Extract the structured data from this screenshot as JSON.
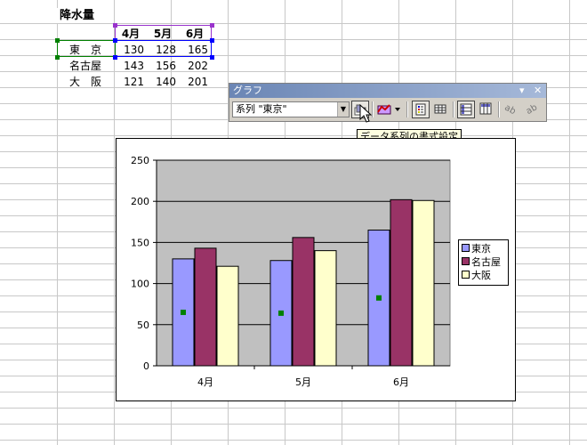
{
  "sheet": {
    "title": "降水量",
    "headers": [
      "4月",
      "5月",
      "6月"
    ],
    "rows": [
      {
        "name": "東　京",
        "values": [
          "130",
          "128",
          "165"
        ]
      },
      {
        "name": "名古屋",
        "values": [
          "143",
          "156",
          "202"
        ]
      },
      {
        "name": "大　阪",
        "values": [
          "121",
          "140",
          "201"
        ]
      }
    ]
  },
  "toolbar": {
    "title": "グラフ",
    "series_selector_value": "系列 \"東京\"",
    "buttons": [
      {
        "name": "format-series-icon",
        "pressed": true
      },
      {
        "name": "chart-type-icon",
        "pressed": false
      },
      {
        "name": "legend-icon",
        "pressed": true
      },
      {
        "name": "data-table-icon",
        "pressed": false
      },
      {
        "name": "by-row-icon",
        "pressed": true
      },
      {
        "name": "by-column-icon",
        "pressed": false
      },
      {
        "name": "angle-text-down-icon",
        "pressed": false
      },
      {
        "name": "angle-text-up-icon",
        "pressed": false
      }
    ]
  },
  "tooltip": "データ系列の書式設定",
  "chart_data": {
    "type": "bar",
    "categories": [
      "4月",
      "5月",
      "6月"
    ],
    "series": [
      {
        "name": "東京",
        "values": [
          130,
          128,
          165
        ],
        "color": "#9999ff",
        "selected": true
      },
      {
        "name": "名古屋",
        "values": [
          143,
          156,
          202
        ],
        "color": "#993366"
      },
      {
        "name": "大阪",
        "values": [
          121,
          140,
          201
        ],
        "color": "#ffffcc"
      }
    ],
    "yticks": [
      "0",
      "50",
      "100",
      "150",
      "200",
      "250"
    ],
    "ylim": [
      0,
      250
    ],
    "grid": true,
    "plot_background": "#c0c0c0",
    "legend": "right"
  }
}
